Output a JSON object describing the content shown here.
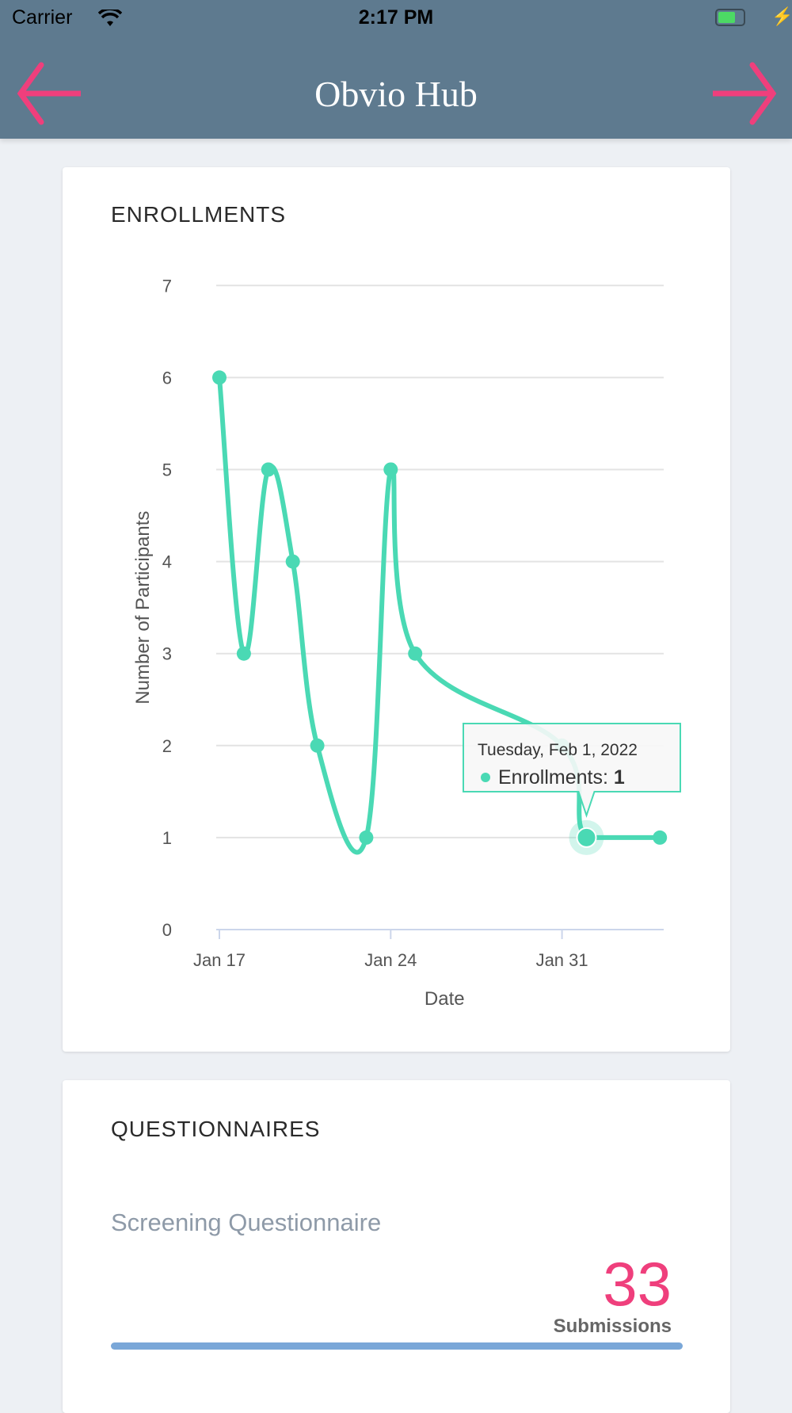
{
  "status_bar": {
    "carrier": "Carrier",
    "time": "2:17 PM"
  },
  "nav": {
    "title": "Obvio Hub",
    "back_icon": "arrow-left-icon",
    "forward_icon": "arrow-right-icon",
    "accent": "#ef3f7c"
  },
  "enrollments": {
    "title": "ENROLLMENTS"
  },
  "chart_data": {
    "type": "line",
    "title": "ENROLLMENTS",
    "xlabel": "Date",
    "ylabel": "Number of Participants",
    "ylim": [
      0,
      7
    ],
    "yticks": [
      0,
      1,
      2,
      3,
      4,
      5,
      6,
      7
    ],
    "xticks": [
      {
        "day": 0,
        "label": "Jan 17"
      },
      {
        "day": 7,
        "label": "Jan 24"
      },
      {
        "day": 14,
        "label": "Jan 31"
      }
    ],
    "xlim_days": [
      0,
      18.2
    ],
    "series": [
      {
        "name": "Enrollments",
        "color": "#4ad9b4",
        "points": [
          {
            "date": "Jan 17",
            "day": 0,
            "y": 6
          },
          {
            "date": "Jan 18",
            "day": 1,
            "y": 3
          },
          {
            "date": "Jan 19",
            "day": 2,
            "y": 5
          },
          {
            "date": "Jan 20",
            "day": 3,
            "y": 4
          },
          {
            "date": "Jan 21",
            "day": 4,
            "y": 2
          },
          {
            "date": "Jan 23",
            "day": 6,
            "y": 1
          },
          {
            "date": "Jan 24",
            "day": 7,
            "y": 5
          },
          {
            "date": "Jan 25",
            "day": 8,
            "y": 3
          },
          {
            "date": "Jan 31",
            "day": 14,
            "y": 2
          },
          {
            "date": "Feb 1",
            "day": 15,
            "y": 1
          },
          {
            "date": "Feb 4",
            "day": 18,
            "y": 1
          }
        ]
      }
    ],
    "tooltip": {
      "date": "Tuesday, Feb  1, 2022",
      "label": "Enrollments: ",
      "value": "1",
      "point_index": 9
    }
  },
  "questionnaires": {
    "title": "QUESTIONNAIRES",
    "items": [
      {
        "name": "Screening Questionnaire",
        "count": "33",
        "count_label": "Submissions",
        "progress": 1.0
      }
    ]
  }
}
